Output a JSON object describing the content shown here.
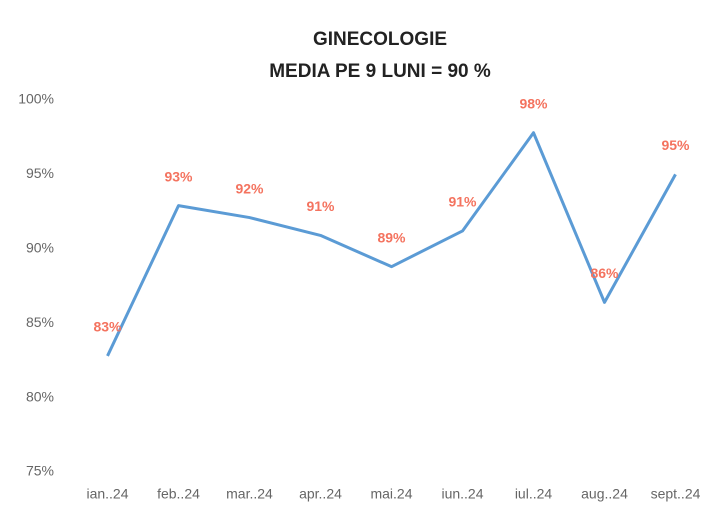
{
  "chart_data": {
    "type": "line",
    "title": "GINECOLOGIE",
    "subtitle": "MEDIA PE 9 LUNI = 90 %",
    "categories": [
      "ian..24",
      "feb..24",
      "mar..24",
      "apr..24",
      "mai.24",
      "iun..24",
      "iul..24",
      "aug..24",
      "sept..24"
    ],
    "series": [
      {
        "name": "GINECOLOGIE",
        "color": "#5b9bd5",
        "values": [
          82.8,
          92.9,
          92.1,
          90.9,
          88.8,
          91.2,
          97.8,
          86.4,
          95.0
        ],
        "value_labels": [
          "83%",
          "93%",
          "92%",
          "91%",
          "89%",
          "91%",
          "98%",
          "86%",
          "95%"
        ]
      }
    ],
    "label_color": "#f4735f",
    "ylim": [
      75,
      100
    ],
    "yticks": [
      {
        "value": 75,
        "label": "75%"
      },
      {
        "value": 80,
        "label": "80%"
      },
      {
        "value": 85,
        "label": "85%"
      },
      {
        "value": 90,
        "label": "90%"
      },
      {
        "value": 95,
        "label": "95%"
      },
      {
        "value": 100,
        "label": "100%"
      }
    ],
    "grid": false
  }
}
